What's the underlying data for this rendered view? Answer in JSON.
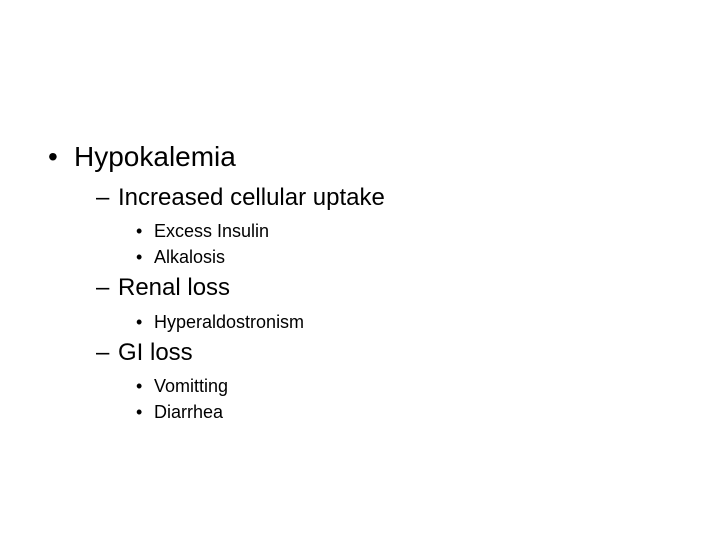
{
  "background_color": "#ffffff",
  "text_color": "#000000",
  "font_family": "Arial",
  "bullet_l1": "•",
  "bullet_l2": "–",
  "bullet_l3": "•",
  "outline": {
    "l1": "Hypokalemia",
    "groups": [
      {
        "l2": "Increased cellular uptake",
        "l3": [
          "Excess Insulin",
          "Alkalosis"
        ]
      },
      {
        "l2": "Renal loss",
        "l3": [
          "Hyperaldostronism"
        ]
      },
      {
        "l2": "GI loss",
        "l3": [
          "Vomitting",
          "Diarrhea"
        ]
      }
    ]
  }
}
